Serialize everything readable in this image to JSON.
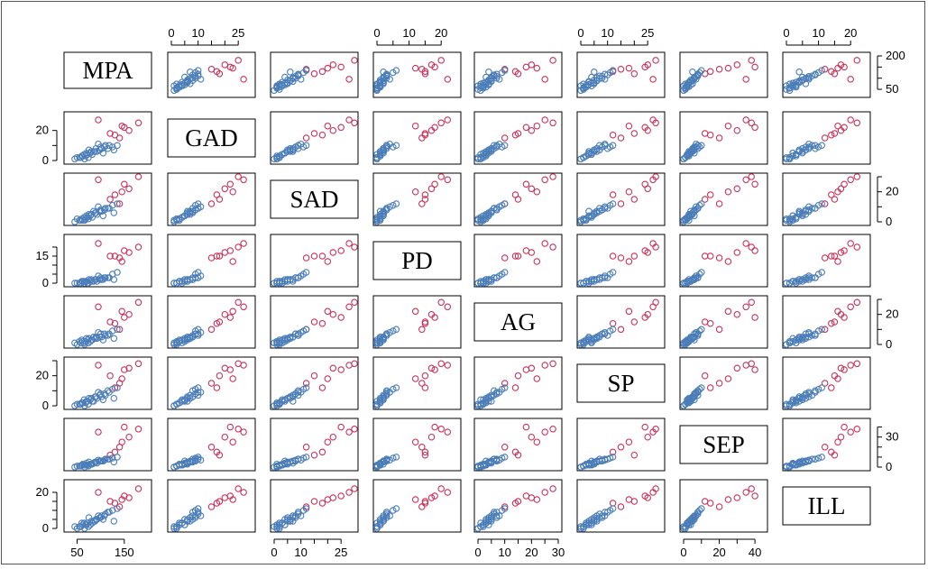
{
  "chart_data": {
    "type": "scatter",
    "variables": [
      "MPA",
      "GAD",
      "SAD",
      "PD",
      "AG",
      "SP",
      "SEP",
      "ILL"
    ],
    "colors": {
      "group_a": "#4a7db8",
      "group_b": "#c8325a"
    },
    "axes": {
      "MPA": {
        "range": [
          30,
          200
        ],
        "ticks": [
          50,
          150
        ],
        "labels": [
          "50",
          "150"
        ],
        "right_ticks": [
          50,
          100,
          150,
          200
        ],
        "right_labels": [
          "50",
          "",
          "",
          "200"
        ]
      },
      "GAD": {
        "range": [
          0,
          30
        ],
        "ticks": [
          0,
          10,
          20
        ],
        "labels": [
          "0",
          "",
          "20"
        ],
        "top_ticks": [
          0,
          5,
          10,
          15,
          20,
          25
        ],
        "top_labels": [
          "0",
          "",
          "10",
          "",
          "",
          "25"
        ]
      },
      "SAD": {
        "range": [
          0,
          30
        ],
        "ticks": [
          0,
          5,
          10,
          15,
          20,
          25
        ],
        "labels": [
          "0",
          "",
          "10",
          "",
          "",
          "25"
        ],
        "right_ticks": [
          0,
          10,
          20,
          30
        ],
        "right_labels": [
          "0",
          "",
          "20",
          ""
        ]
      },
      "PD": {
        "range": [
          0,
          25
        ],
        "ticks": [
          0,
          5,
          10,
          15,
          20
        ],
        "labels": [
          "0",
          "",
          "10",
          "",
          "20"
        ],
        "left_ticks": [
          0,
          5,
          10,
          15,
          20
        ],
        "left_labels": [
          "0",
          "",
          "",
          "15",
          ""
        ]
      },
      "AG": {
        "range": [
          0,
          30
        ],
        "ticks": [
          0,
          5,
          10,
          15,
          20,
          25,
          30
        ],
        "labels": [
          "0",
          "",
          "10",
          "",
          "20",
          "",
          "30"
        ],
        "right_ticks": [
          0,
          10,
          20,
          30
        ],
        "right_labels": [
          "0",
          "",
          "20",
          ""
        ]
      },
      "SP": {
        "range": [
          0,
          30
        ],
        "ticks": [
          0,
          5,
          10,
          15,
          20,
          25
        ],
        "labels": [
          "0",
          "",
          "10",
          "",
          "",
          "25"
        ],
        "left_ticks": [
          0,
          10,
          20,
          30
        ],
        "left_labels": [
          "0",
          "",
          "20",
          ""
        ]
      },
      "SEP": {
        "range": [
          0,
          45
        ],
        "ticks": [
          0,
          10,
          20,
          30,
          40
        ],
        "labels": [
          "0",
          "",
          "20",
          "",
          "40"
        ],
        "right_ticks": [
          0,
          10,
          20,
          30,
          40
        ],
        "right_labels": [
          "0",
          "",
          "",
          "30",
          ""
        ]
      },
      "ILL": {
        "range": [
          0,
          25
        ],
        "ticks": [
          0,
          5,
          10,
          15,
          20
        ],
        "labels": [
          "0",
          "",
          "10",
          "",
          "20"
        ],
        "left_ticks": [
          0,
          5,
          10,
          15,
          20
        ],
        "left_labels": [
          "0",
          "",
          "",
          "",
          "20"
        ]
      }
    },
    "observations": [
      {
        "group": "b",
        "values": [
          95,
          27,
          28,
          22,
          25,
          27,
          35,
          20
        ]
      },
      {
        "group": "b",
        "values": [
          150,
          22,
          25,
          18,
          18,
          24,
          40,
          18
        ]
      },
      {
        "group": "b",
        "values": [
          120,
          18,
          15,
          15,
          15,
          20,
          12,
          15
        ]
      },
      {
        "group": "b",
        "values": [
          180,
          25,
          30,
          20,
          28,
          28,
          38,
          22
        ]
      },
      {
        "group": "b",
        "values": [
          140,
          15,
          12,
          14,
          10,
          15,
          20,
          12
        ]
      },
      {
        "group": "b",
        "values": [
          160,
          20,
          22,
          17,
          20,
          25,
          30,
          17
        ]
      },
      {
        "group": "b",
        "values": [
          130,
          17,
          18,
          15,
          14,
          12,
          15,
          14
        ]
      },
      {
        "group": "b",
        "values": [
          145,
          23,
          20,
          12,
          22,
          18,
          25,
          16
        ]
      },
      {
        "group": "a",
        "values": [
          60,
          3,
          2,
          1,
          3,
          2,
          2,
          3
        ]
      },
      {
        "group": "a",
        "values": [
          70,
          5,
          4,
          1,
          4,
          3,
          4,
          2
        ]
      },
      {
        "group": "a",
        "values": [
          80,
          6,
          5,
          2,
          3,
          5,
          3,
          4
        ]
      },
      {
        "group": "a",
        "values": [
          90,
          8,
          6,
          2,
          5,
          6,
          5,
          5
        ]
      },
      {
        "group": "a",
        "values": [
          100,
          9,
          8,
          3,
          7,
          8,
          6,
          6
        ]
      },
      {
        "group": "a",
        "values": [
          110,
          10,
          9,
          3,
          6,
          7,
          8,
          8
        ]
      },
      {
        "group": "a",
        "values": [
          55,
          2,
          1,
          0,
          2,
          1,
          1,
          1
        ]
      },
      {
        "group": "a",
        "values": [
          65,
          4,
          3,
          1,
          1,
          4,
          2,
          3
        ]
      },
      {
        "group": "a",
        "values": [
          75,
          7,
          5,
          2,
          4,
          5,
          5,
          6
        ]
      },
      {
        "group": "a",
        "values": [
          85,
          6,
          7,
          1,
          5,
          3,
          4,
          4
        ]
      },
      {
        "group": "a",
        "values": [
          95,
          11,
          10,
          4,
          8,
          9,
          7,
          7
        ]
      },
      {
        "group": "a",
        "values": [
          105,
          5,
          4,
          2,
          3,
          4,
          6,
          5
        ]
      },
      {
        "group": "a",
        "values": [
          115,
          8,
          9,
          3,
          6,
          10,
          8,
          9
        ]
      },
      {
        "group": "a",
        "values": [
          125,
          9,
          11,
          5,
          9,
          11,
          9,
          10
        ]
      },
      {
        "group": "a",
        "values": [
          135,
          10,
          12,
          6,
          10,
          12,
          10,
          11
        ]
      },
      {
        "group": "a",
        "values": [
          45,
          1,
          0,
          0,
          1,
          0,
          0,
          1
        ]
      },
      {
        "group": "a",
        "values": [
          50,
          2,
          2,
          0,
          0,
          1,
          1,
          0
        ]
      },
      {
        "group": "a",
        "values": [
          62,
          3,
          1,
          1,
          2,
          2,
          3,
          2
        ]
      },
      {
        "group": "a",
        "values": [
          72,
          4,
          3,
          0,
          3,
          3,
          2,
          3
        ]
      },
      {
        "group": "a",
        "values": [
          88,
          6,
          6,
          2,
          4,
          6,
          5,
          4
        ]
      },
      {
        "group": "a",
        "values": [
          98,
          7,
          7,
          2,
          5,
          7,
          6,
          6
        ]
      },
      {
        "group": "a",
        "values": [
          108,
          9,
          8,
          3,
          7,
          8,
          7,
          7
        ]
      },
      {
        "group": "a",
        "values": [
          78,
          5,
          4,
          1,
          2,
          4,
          3,
          2
        ]
      },
      {
        "group": "a",
        "values": [
          92,
          6,
          5,
          1,
          4,
          5,
          4,
          5
        ]
      },
      {
        "group": "a",
        "values": [
          58,
          2,
          1,
          0,
          1,
          1,
          1,
          1
        ]
      },
      {
        "group": "a",
        "values": [
          68,
          3,
          2,
          1,
          2,
          2,
          2,
          2
        ]
      },
      {
        "group": "a",
        "values": [
          82,
          4,
          3,
          1,
          3,
          3,
          3,
          3
        ]
      },
      {
        "group": "a",
        "values": [
          102,
          8,
          7,
          2,
          5,
          6,
          6,
          7
        ]
      },
      {
        "group": "a",
        "values": [
          118,
          10,
          9,
          3,
          7,
          9,
          8,
          9
        ]
      },
      {
        "group": "a",
        "values": [
          128,
          7,
          6,
          2,
          4,
          5,
          5,
          4
        ]
      },
      {
        "group": "a",
        "values": [
          66,
          1,
          1,
          0,
          0,
          0,
          0,
          0
        ]
      },
      {
        "group": "a",
        "values": [
          74,
          2,
          2,
          0,
          1,
          1,
          1,
          1
        ]
      }
    ]
  }
}
